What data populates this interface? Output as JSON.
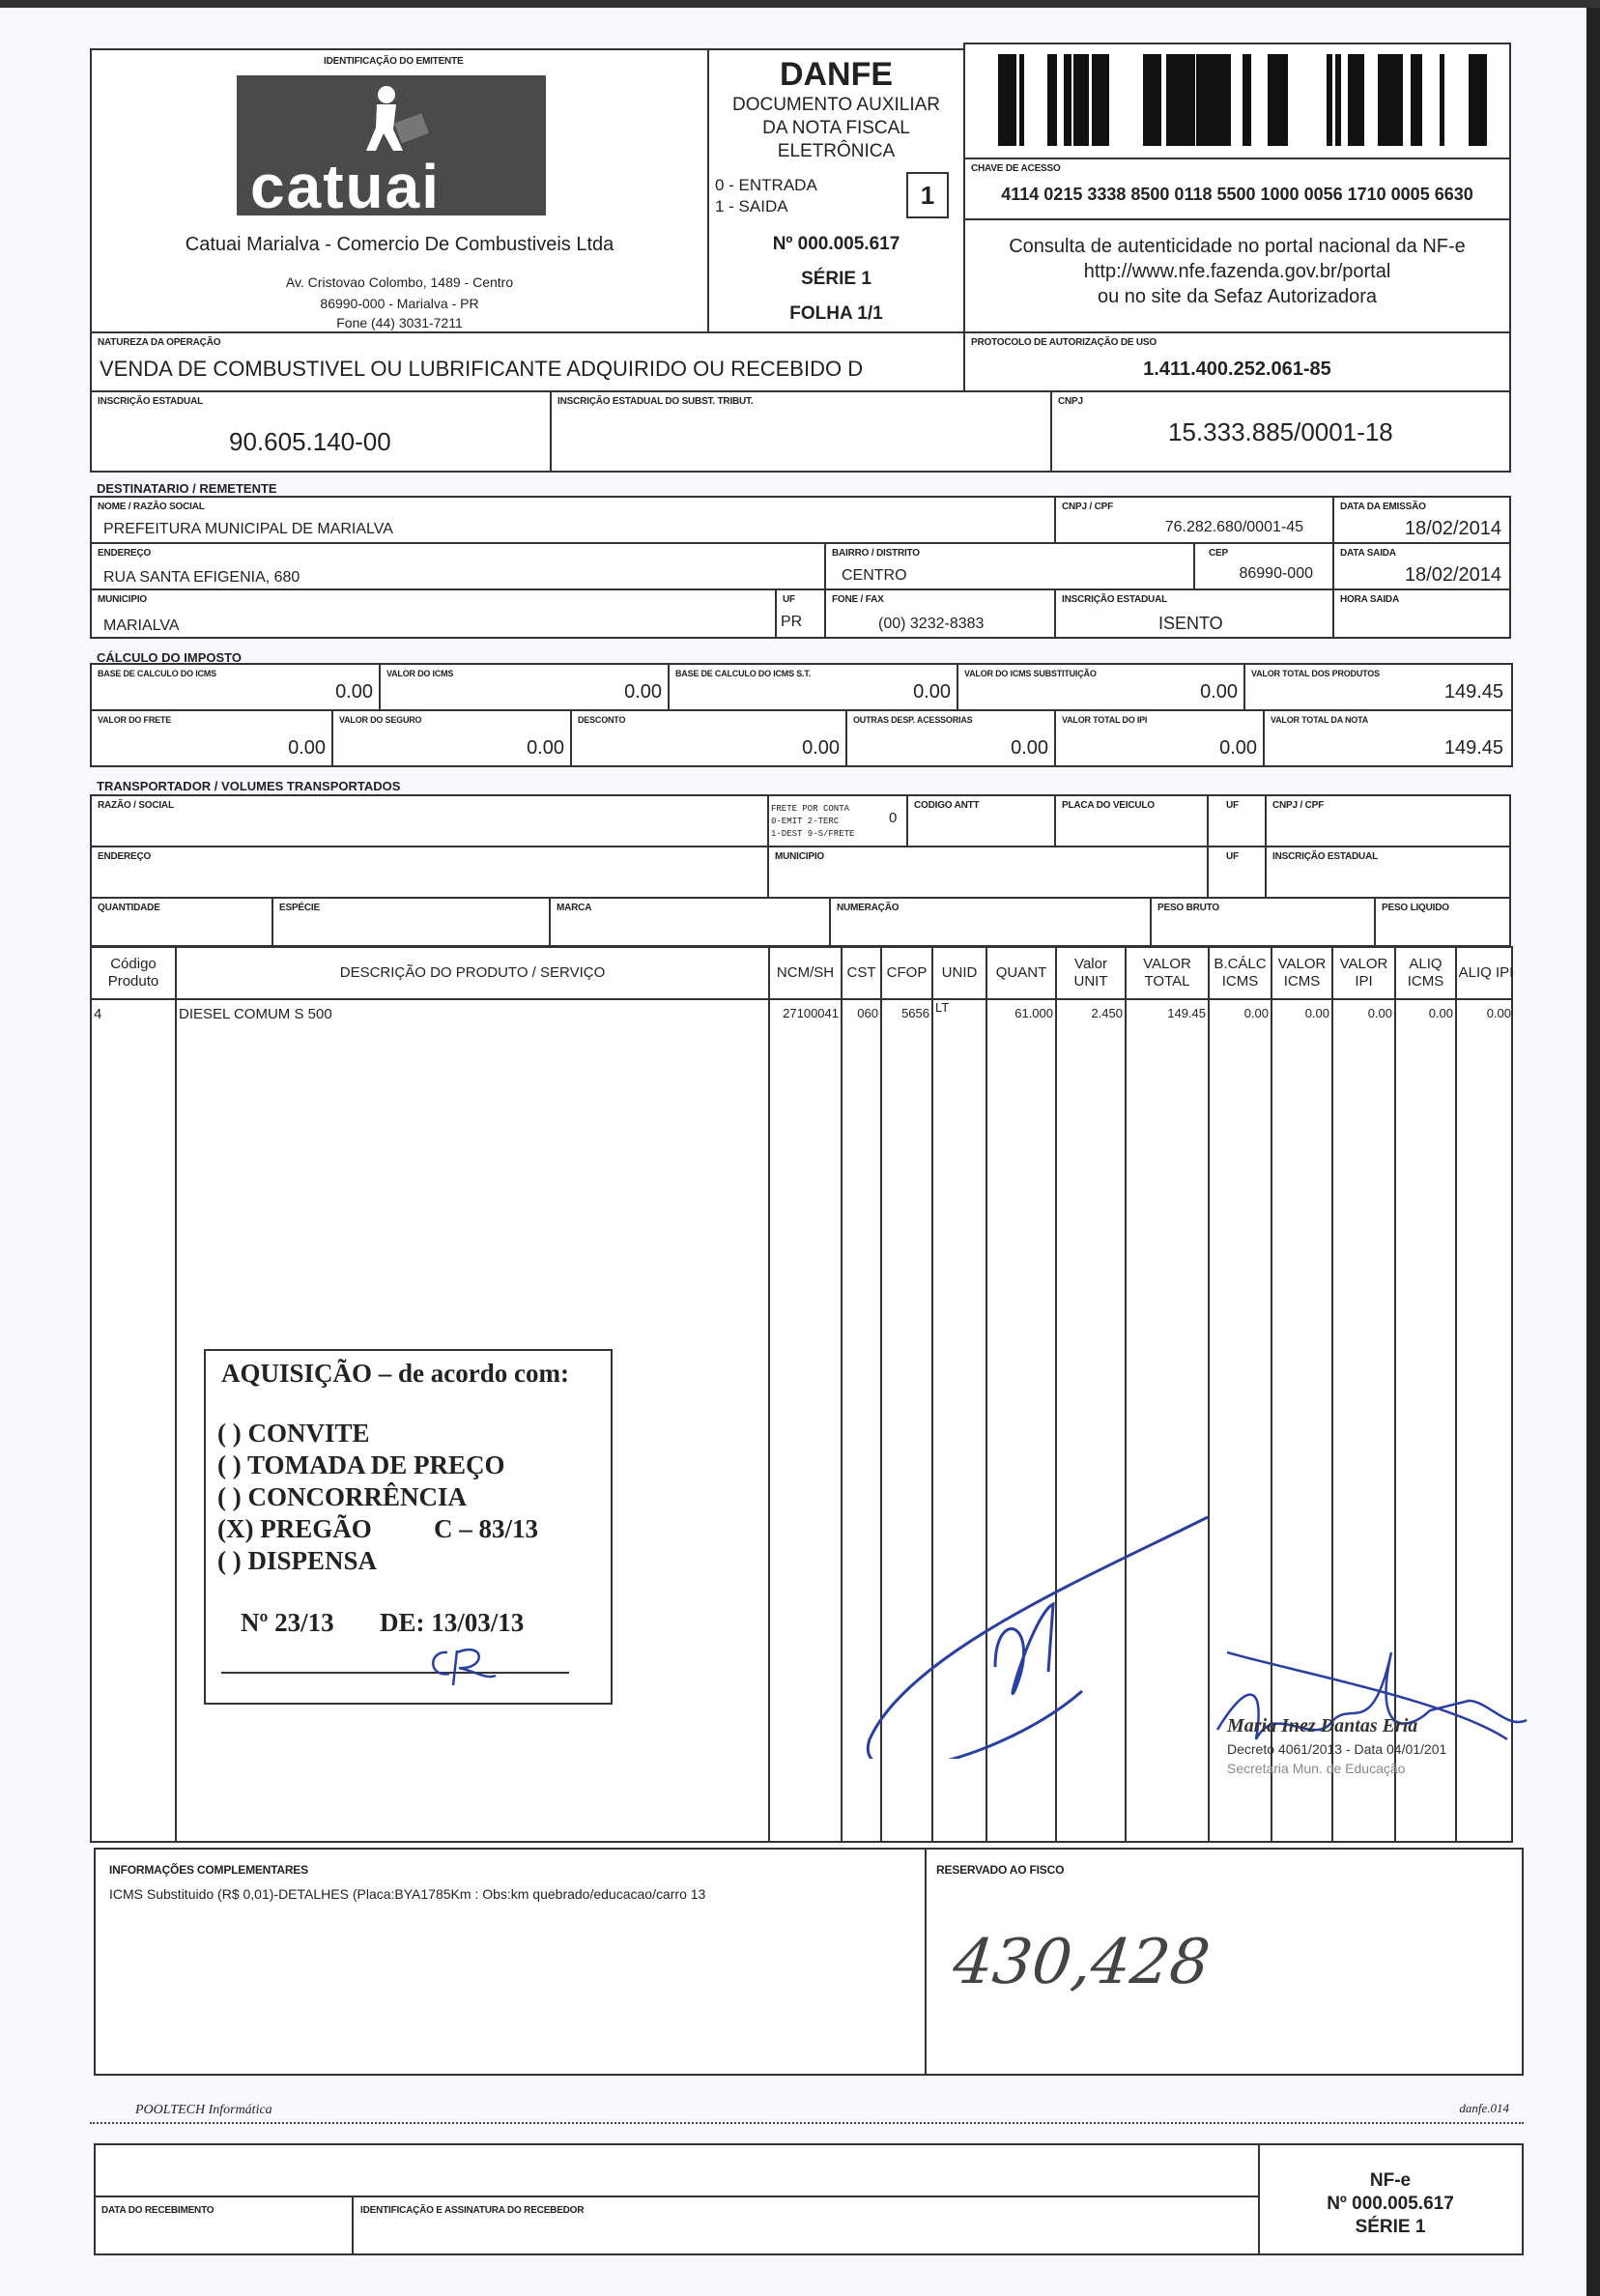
{
  "emitente": {
    "section_label": "IDENTIFICAÇÃO DO EMITENTE",
    "logo_text": "catuai",
    "name": "Catuai Marialva - Comercio De Combustiveis Ltda",
    "address": "Av. Cristovao Colombo, 1489 - Centro",
    "city": "86990-000 - Marialva - PR",
    "phone": "Fone (44) 3031-7211"
  },
  "danfe": {
    "title": "DANFE",
    "subtitle1": "DOCUMENTO AUXILIAR",
    "subtitle2": "DA NOTA FISCAL",
    "subtitle3": "ELETRÔNICA",
    "entrada": "0 - ENTRADA",
    "saida": "1 - SAIDA",
    "tipo": "1",
    "numero": "Nº 000.005.617",
    "serie": "SÉRIE 1",
    "folha": "FOLHA 1/1"
  },
  "chave": {
    "label": "CHAVE DE ACESSO",
    "value": "4114 0215 3338 8500 0118 5500 1000 0056 1710 0005 6630"
  },
  "consulta": {
    "line1": "Consulta de autenticidade no portal nacional da NF-e",
    "line2": "http://www.nfe.fazenda.gov.br/portal",
    "line3": "ou no site da Sefaz Autorizadora"
  },
  "natureza": {
    "label": "NATUREZA DA OPERAÇÃO",
    "value": "VENDA DE COMBUSTIVEL OU LUBRIFICANTE ADQUIRIDO OU RECEBIDO D"
  },
  "protocolo": {
    "label": "PROTOCOLO DE AUTORIZAÇÃO DE USO",
    "value": "1.411.400.252.061-85"
  },
  "ie": {
    "label": "INSCRIÇÃO ESTADUAL",
    "value": "90.605.140-00",
    "st_label": "INSCRIÇÃO ESTADUAL DO SUBST. TRIBUT.",
    "cnpj_label": "CNPJ",
    "cnpj": "15.333.885/0001-18"
  },
  "dest": {
    "section": "DESTINATARIO / REMETENTE",
    "nome_label": "NOME / RAZÃO SOCIAL",
    "nome": "PREFEITURA MUNICIPAL DE MARIALVA",
    "cnpj_label": "CNPJ / CPF",
    "cnpj": "76.282.680/0001-45",
    "emissao_label": "DATA DA EMISSÃO",
    "emissao": "18/02/2014",
    "end_label": "ENDEREÇO",
    "end": "RUA SANTA EFIGENIA, 680",
    "bairro_label": "BAIRRO / DISTRITO",
    "bairro": "CENTRO",
    "cep_label": "CEP",
    "cep": "86990-000",
    "saida_label": "DATA SAIDA",
    "saida": "18/02/2014",
    "mun_label": "MUNICIPIO",
    "mun": "MARIALVA",
    "uf_label": "UF",
    "uf": "PR",
    "fone_label": "FONE / FAX",
    "fone": "(00) 3232-8383",
    "ie_label": "INSCRIÇÃO ESTADUAL",
    "ie": "ISENTO",
    "hora_label": "HORA SAIDA"
  },
  "imposto": {
    "section": "CÁLCULO DO IMPOSTO",
    "row1": [
      {
        "label": "BASE DE CALCULO DO ICMS",
        "value": "0.00"
      },
      {
        "label": "VALOR DO ICMS",
        "value": "0.00"
      },
      {
        "label": "BASE DE CALCULO DO ICMS S.T.",
        "value": "0.00"
      },
      {
        "label": "VALOR DO ICMS SUBSTITUIÇÃO",
        "value": "0.00"
      },
      {
        "label": "VALOR TOTAL DOS PRODUTOS",
        "value": "149.45"
      }
    ],
    "row2": [
      {
        "label": "VALOR DO FRETE",
        "value": "0.00"
      },
      {
        "label": "VALOR DO SEGURO",
        "value": "0.00"
      },
      {
        "label": "DESCONTO",
        "value": "0.00"
      },
      {
        "label": "OUTRAS DESP. ACESSORIAS",
        "value": "0.00"
      },
      {
        "label": "VALOR TOTAL DO IPI",
        "value": "0.00"
      },
      {
        "label": "VALOR TOTAL DA NOTA",
        "value": "149.45"
      }
    ]
  },
  "transp": {
    "section": "TRANSPORTADOR / VOLUMES TRANSPORTADOS",
    "razao": "RAZÃO / SOCIAL",
    "frete1": "FRETE POR CONTA",
    "frete2": "0-EMIT 2-TERC",
    "frete3": "1-DEST 9-S/FRETE",
    "frete_val": "0",
    "antt": "CODIGO ANTT",
    "placa": "PLACA DO VEICULO",
    "uf": "UF",
    "cnpj": "CNPJ / CPF",
    "endereco": "ENDEREÇO",
    "municipio": "MUNICIPIO",
    "uf2": "UF",
    "ie": "INSCRIÇÃO ESTADUAL",
    "quantidade": "QUANTIDADE",
    "especie": "ESPÉCIE",
    "marca": "MARCA",
    "numeracao": "NUMERAÇÃO",
    "peso_bruto": "PESO BRUTO",
    "peso_liquido": "PESO LIQUIDO"
  },
  "items": {
    "headers": [
      "Código Produto",
      "DESCRIÇÃO DO PRODUTO / SERVIÇO",
      "NCM/SH",
      "CST",
      "CFOP",
      "UNID",
      "QUANT",
      "Valor UNIT",
      "VALOR TOTAL",
      "B.CÁLC ICMS",
      "VALOR ICMS",
      "VALOR IPI",
      "ALIQ ICMS",
      "ALIQ IPI"
    ],
    "rows": [
      [
        "4",
        "DIESEL COMUM S 500",
        "27100041",
        "060",
        "5656",
        "LT",
        "61.000",
        "2.450",
        "149.45",
        "0.00",
        "0.00",
        "0.00",
        "0.00",
        "0.00"
      ]
    ]
  },
  "stamp": {
    "title": "AQUISIÇÃO – de acordo com:",
    "options": [
      "( ) CONVITE",
      "( ) TOMADA DE PREÇO",
      "( ) CONCORRÊNCIA",
      "(X) PREGÃO",
      "( ) DISPENSA"
    ],
    "pregao_ref": "C – 83/13",
    "numero": "Nº 23/13",
    "data": "DE: 13/03/13"
  },
  "signature_stamp": {
    "name": "Maria Inez Dantas Eria",
    "line2": "Decreto 4061/2013 - Data 04/01/201",
    "line3": "Secretaria Mun. de Educação"
  },
  "info": {
    "label": "INFORMAÇÕES COMPLEMENTARES",
    "text": "ICMS Substituido (R$ 0,01)-DETALHES (Placa:BYA1785Km : Obs:km quebrado/educacao/carro 13",
    "fisco_label": "RESERVADO AO FISCO",
    "handwritten": "430,428"
  },
  "footer": {
    "software": "POOLTECH Informática",
    "code": "danfe.014"
  },
  "canhoto": {
    "data_label": "DATA DO RECEBIMENTO",
    "ident_label": "IDENTIFICAÇÃO E ASSINATURA DO RECEBEDOR",
    "nfe": "NF-e",
    "numero": "Nº 000.005.617",
    "serie": "SÉRIE 1"
  },
  "colors": {
    "ink": "#222222",
    "pen": "#2a3f9e",
    "logo_bg": "#4a4a4a"
  }
}
